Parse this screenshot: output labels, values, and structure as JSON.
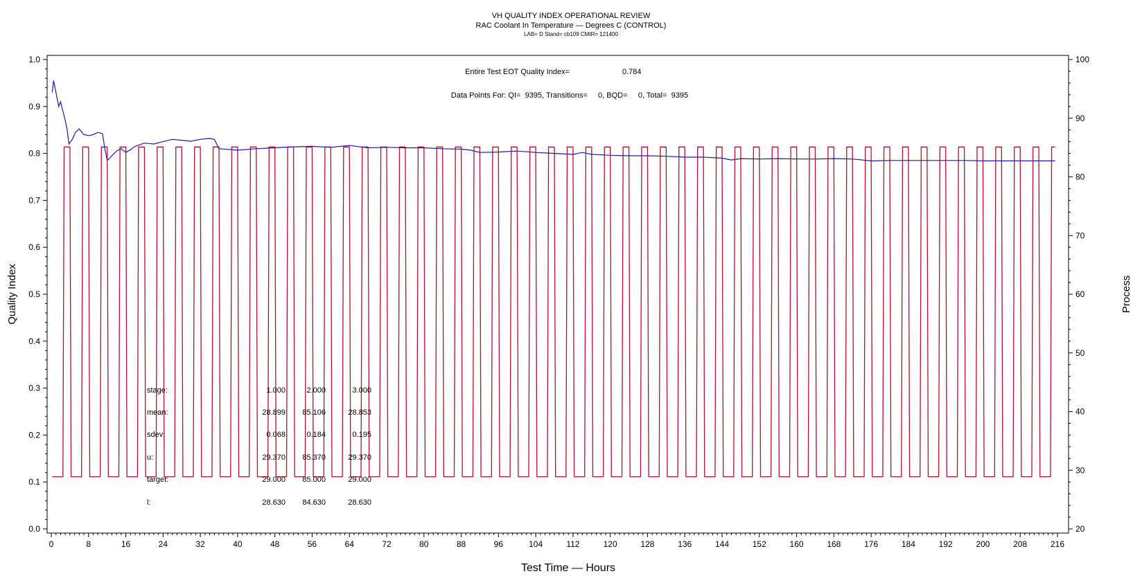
{
  "chart_data": {
    "type": "line",
    "title": "VH QUALITY INDEX OPERATIONAL REVIEW",
    "subtitle": "RAC Coolant In Temperature — Degrees C (CONTROL)",
    "subtitle2": "LAB= D Stand= cb109 CMIR= 121400",
    "xlabel": "Test Time — Hours",
    "ylabel": "Quality Index",
    "y2label": "Process",
    "xlim": [
      0,
      216
    ],
    "ylim": [
      0,
      1.0
    ],
    "y2lim": [
      20,
      100
    ],
    "x_ticks": [
      0,
      8,
      16,
      24,
      32,
      40,
      48,
      56,
      64,
      72,
      80,
      88,
      96,
      104,
      112,
      120,
      128,
      136,
      144,
      152,
      160,
      168,
      176,
      184,
      192,
      200,
      208,
      216
    ],
    "y_ticks": [
      "0.0",
      "0.1",
      "0.2",
      "0.3",
      "0.4",
      "0.5",
      "0.6",
      "0.7",
      "0.8",
      "0.9",
      "1.0"
    ],
    "y2_ticks": [
      20,
      30,
      40,
      50,
      60,
      70,
      80,
      90,
      100
    ],
    "annotations": {
      "eot_label": "Entire Test EOT Quality Index=",
      "eot_value": "0.784",
      "points_text": "Data Points For: QI=  9395, Transitions=     0, BQD=     0, Total=  9395"
    },
    "stats_table": {
      "rows": [
        {
          "label": "stage:",
          "values": [
            "1.000",
            "2.000",
            "3.000"
          ]
        },
        {
          "label": "mean:",
          "values": [
            "28.899",
            "85.106",
            "28.853"
          ]
        },
        {
          "label": "sdev:",
          "values": [
            "0.068",
            "0.184",
            "0.195"
          ]
        },
        {
          "label": "u:",
          "values": [
            "29.370",
            "85.370",
            "29.370"
          ]
        },
        {
          "label": "target:",
          "values": [
            "29.000",
            "85.000",
            "29.000"
          ]
        },
        {
          "label": "l:",
          "values": [
            "28.630",
            "84.630",
            "28.630"
          ]
        }
      ]
    },
    "series": [
      {
        "name": "Quality Index",
        "axis": "left",
        "color": "#1a1aa0",
        "x": [
          0.2,
          0.5,
          0.8,
          1.2,
          1.6,
          2.0,
          2.5,
          3.0,
          3.4,
          3.8,
          4.5,
          5.2,
          6.0,
          7.0,
          8.0,
          9.0,
          10.0,
          11.0,
          11.5,
          12.0,
          13.0,
          14.0,
          15.0,
          16.0,
          17.0,
          18.0,
          20.0,
          22.0,
          24.0,
          26.0,
          28.0,
          30.0,
          32.0,
          34.0,
          35.0,
          36.0,
          40.0,
          44.0,
          48.0,
          52.0,
          56.0,
          60.0,
          64.0,
          68.0,
          72.0,
          76.0,
          80.0,
          84.0,
          88.0,
          90.0,
          92.0,
          96.0,
          100.0,
          104.0,
          108.0,
          112.0,
          114.0,
          116.0,
          120.0,
          124.0,
          128.0,
          132.0,
          136.0,
          140.0,
          144.0,
          146.0,
          148.0,
          152.0,
          156.0,
          160.0,
          164.0,
          168.0,
          172.0,
          176.0,
          180.0,
          184.0,
          188.0,
          192.0,
          196.0,
          200.0,
          204.0,
          208.0,
          212.0,
          215.5
        ],
        "values": [
          0.93,
          0.955,
          0.94,
          0.92,
          0.9,
          0.91,
          0.89,
          0.87,
          0.85,
          0.82,
          0.83,
          0.845,
          0.852,
          0.84,
          0.838,
          0.84,
          0.845,
          0.842,
          0.81,
          0.785,
          0.795,
          0.805,
          0.81,
          0.802,
          0.808,
          0.815,
          0.822,
          0.82,
          0.825,
          0.83,
          0.828,
          0.826,
          0.83,
          0.832,
          0.83,
          0.81,
          0.807,
          0.81,
          0.812,
          0.814,
          0.815,
          0.813,
          0.817,
          0.812,
          0.813,
          0.812,
          0.812,
          0.81,
          0.809,
          0.807,
          0.802,
          0.803,
          0.805,
          0.802,
          0.8,
          0.798,
          0.802,
          0.798,
          0.796,
          0.795,
          0.795,
          0.794,
          0.792,
          0.792,
          0.79,
          0.786,
          0.789,
          0.788,
          0.789,
          0.788,
          0.788,
          0.789,
          0.788,
          0.784,
          0.785,
          0.785,
          0.785,
          0.785,
          0.785,
          0.784,
          0.784,
          0.784,
          0.784,
          0.784
        ]
      },
      {
        "name": "RAC Coolant In Temperature",
        "axis": "right",
        "color": "#b0102a",
        "pattern": "square wave between stage levels",
        "low": 28.9,
        "high": 85.1,
        "cycle_hours": 4,
        "high_hours": 1.5,
        "first_rise_hours": 2.5,
        "end_hours": 215.5
      }
    ]
  }
}
